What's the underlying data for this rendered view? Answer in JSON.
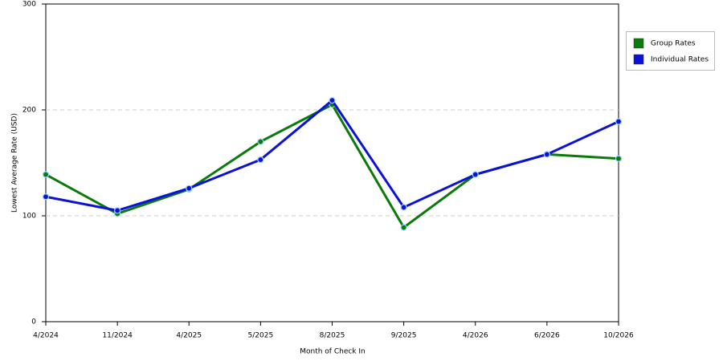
{
  "chart_data": {
    "type": "line",
    "xlabel": "Month of Check In",
    "ylabel": "Lowest Average Rate (USD)",
    "categories": [
      "4/2024",
      "11/2024",
      "4/2025",
      "5/2025",
      "8/2025",
      "9/2025",
      "4/2026",
      "6/2026",
      "10/2026"
    ],
    "series": [
      {
        "name": "Group Rates",
        "color": "#0a7a0a",
        "values": [
          139,
          102,
          125,
          170,
          205,
          89,
          139,
          158,
          154
        ]
      },
      {
        "name": "Individual Rates",
        "color": "#0b12d6",
        "values": [
          118,
          105,
          126,
          153,
          209,
          108,
          139,
          158,
          189
        ]
      }
    ],
    "ylim": [
      0,
      300
    ],
    "yticks": [
      0,
      100,
      200,
      300
    ],
    "grid": true,
    "legend": "right"
  }
}
